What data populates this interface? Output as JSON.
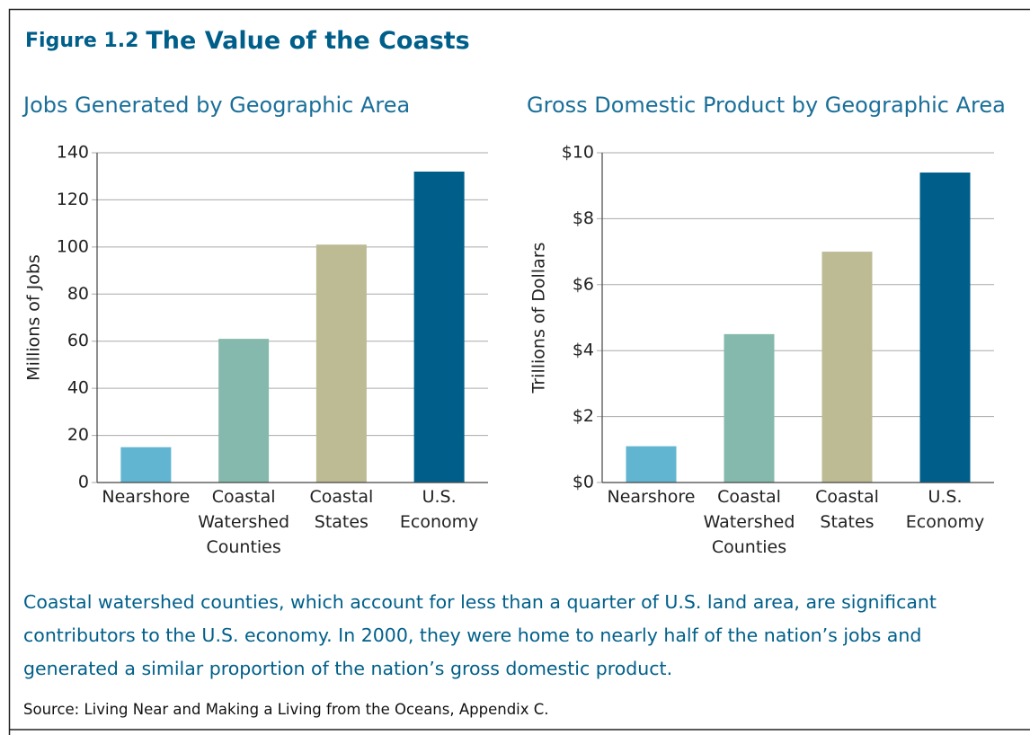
{
  "figure_label": "Figure 1.2",
  "title": "The Value of the Coasts",
  "chart_data": [
    {
      "type": "bar",
      "title": "Jobs Generated by Geographic Area",
      "y_label": "Millions of Jobs",
      "categories": [
        "Nearshore",
        "Coastal Watershed Counties",
        "Coastal States",
        "U.S. Economy"
      ],
      "values": [
        15,
        61,
        101,
        132
      ],
      "colors": [
        "#62b5d0",
        "#86b9ad",
        "#bdbb94",
        "#005f8a"
      ],
      "ylim": [
        0,
        140
      ],
      "yticks": [
        0,
        20,
        40,
        60,
        80,
        100,
        120,
        140
      ],
      "grid": true
    },
    {
      "type": "bar",
      "title": "Gross Domestic Product by Geographic Area",
      "y_label": "Trillions of Dollars",
      "categories": [
        "Nearshore",
        "Coastal Watershed Counties",
        "Coastal States",
        "U.S. Economy"
      ],
      "values": [
        1.1,
        4.5,
        7.0,
        9.4
      ],
      "colors": [
        "#62b5d0",
        "#86b9ad",
        "#bdbb94",
        "#005f8a"
      ],
      "ylim": [
        0,
        10
      ],
      "yticks": [
        {
          "value": 0,
          "label": "$0"
        },
        {
          "value": 2,
          "label": "$2"
        },
        {
          "value": 4,
          "label": "$4"
        },
        {
          "value": 6,
          "label": "$6"
        },
        {
          "value": 8,
          "label": "$8"
        },
        {
          "value": 10,
          "label": "$10"
        }
      ],
      "grid": true
    }
  ],
  "caption": "Coastal watershed counties, which account for less than a quarter of U.S. land area, are significant contributors to the U.S. economy. In 2000, they were home to nearly half of the nation’s jobs and generated a similar proportion of the nation’s gross domestic product.",
  "source": "Source: Living Near and Making a Living from the Oceans, Appendix C."
}
